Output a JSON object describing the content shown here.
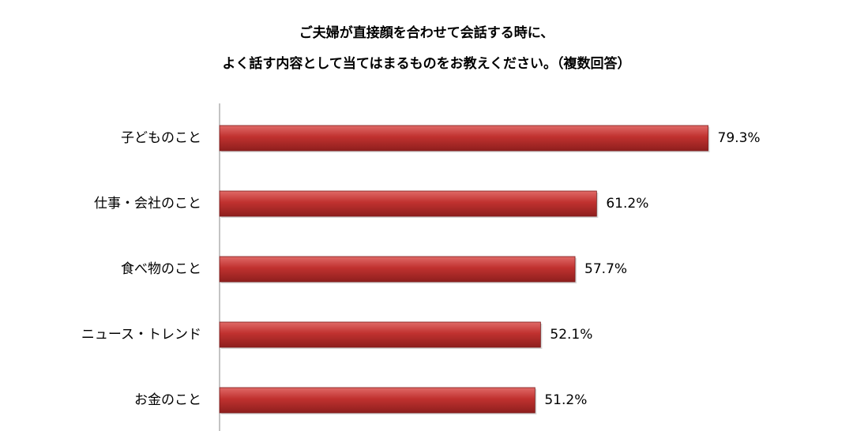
{
  "chart_data": {
    "type": "bar",
    "orientation": "horizontal",
    "title": "ご夫婦が直接顔を合わせて会話する時に、",
    "subtitle": "よく話す内容として当てはまるものをお教えください。（複数回答）",
    "categories": [
      "子どものこと",
      "仕事・会社のこと",
      "食べ物のこと",
      "ニュース・トレンド",
      "お金のこと"
    ],
    "values": [
      79.3,
      61.2,
      57.7,
      52.1,
      51.2
    ],
    "value_labels": [
      "79.3%",
      "61.2%",
      "57.7%",
      "52.1%",
      "51.2%"
    ],
    "unit": "%",
    "xlim": [
      0,
      100
    ],
    "grid": false,
    "legend": "none",
    "bar_color": "#c0312f",
    "bar_highlight": "#e06a67",
    "bar_shadow": "#8e1f1e"
  }
}
